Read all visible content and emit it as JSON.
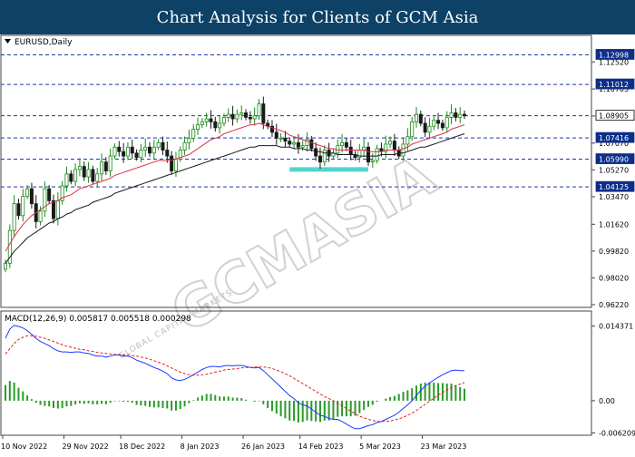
{
  "title": "Chart Analysis for Clients of GCM Asia",
  "watermark": "GCMASIA",
  "watermark_sub": "GLOBAL CAPITAL MARKETS",
  "chart_data": [
    {
      "type": "candlestick",
      "symbol_label": "EURUSD,Daily",
      "ylim": [
        0.9622,
        1.14
      ],
      "y_ticks": [
        1.1252,
        1.10705,
        1.0889,
        1.0707,
        1.0527,
        1.0347,
        1.0162,
        0.9982,
        0.9802,
        0.9622
      ],
      "levels": [
        {
          "value": 1.12998,
          "label": "1.12998"
        },
        {
          "value": 1.11012,
          "label": "1.11012"
        },
        {
          "value": 1.08905,
          "label": "1.08905",
          "highlight": true
        },
        {
          "value": 1.07416,
          "label": "1.07416"
        },
        {
          "value": 1.0599,
          "label": "1.05990"
        },
        {
          "value": 1.04125,
          "label": "1.04125"
        }
      ],
      "support_zone": {
        "value": 1.053,
        "from_date": "14 Feb 2023",
        "to_date": "5 Mar 2023"
      },
      "colors": {
        "bull": "#1a8a1a",
        "bear": "#1a1a1a",
        "ma_fast": "#d6334a",
        "ma_slow": "#1a1a1a",
        "level": "#1a3aa8",
        "zone": "#3fd0c8",
        "tag_bg": "#0d2f8a"
      },
      "x_labels": [
        "10 Nov 2022",
        "29 Nov 2022",
        "18 Dec 2022",
        "8 Jan 2023",
        "26 Jan 2023",
        "14 Feb 2023",
        "5 Mar 2023",
        "23 Mar 2023"
      ],
      "close": [
        0.99,
        1.012,
        1.03,
        1.022,
        1.035,
        1.04,
        1.03,
        1.018,
        1.025,
        1.04,
        1.032,
        1.02,
        1.032,
        1.042,
        1.05,
        1.045,
        1.053,
        1.055,
        1.048,
        1.053,
        1.045,
        1.05,
        1.058,
        1.052,
        1.062,
        1.068,
        1.065,
        1.062,
        1.068,
        1.064,
        1.061,
        1.066,
        1.068,
        1.064,
        1.068,
        1.071,
        1.066,
        1.062,
        1.052,
        1.06,
        1.066,
        1.071,
        1.074,
        1.08,
        1.083,
        1.085,
        1.087,
        1.085,
        1.081,
        1.084,
        1.088,
        1.09,
        1.087,
        1.09,
        1.091,
        1.088,
        1.087,
        1.089,
        1.097,
        1.084,
        1.082,
        1.078,
        1.074,
        1.074,
        1.072,
        1.07,
        1.071,
        1.068,
        1.069,
        1.073,
        1.067,
        1.062,
        1.058,
        1.066,
        1.062,
        1.064,
        1.069,
        1.071,
        1.068,
        1.063,
        1.061,
        1.066,
        1.068,
        1.058,
        1.059,
        1.067,
        1.065,
        1.07,
        1.072,
        1.066,
        1.062,
        1.07,
        1.075,
        1.085,
        1.09,
        1.084,
        1.078,
        1.082,
        1.086,
        1.084,
        1.081,
        1.088,
        1.091,
        1.088,
        1.09,
        1.089
      ],
      "ma_fast": [
        0.998,
        1.003,
        1.008,
        1.012,
        1.016,
        1.019,
        1.022,
        1.024,
        1.026,
        1.028,
        1.03,
        1.031,
        1.032,
        1.034,
        1.035,
        1.036,
        1.038,
        1.04,
        1.041,
        1.042,
        1.043,
        1.044,
        1.045,
        1.046,
        1.047,
        1.049,
        1.05,
        1.051,
        1.052,
        1.053,
        1.054,
        1.055,
        1.056,
        1.057,
        1.058,
        1.059,
        1.059,
        1.059,
        1.059,
        1.06,
        1.061,
        1.062,
        1.063,
        1.065,
        1.067,
        1.069,
        1.071,
        1.073,
        1.074,
        1.075,
        1.077,
        1.078,
        1.079,
        1.08,
        1.081,
        1.082,
        1.083,
        1.083,
        1.084,
        1.083,
        1.082,
        1.081,
        1.08,
        1.079,
        1.078,
        1.076,
        1.075,
        1.074,
        1.073,
        1.072,
        1.071,
        1.07,
        1.069,
        1.068,
        1.067,
        1.067,
        1.066,
        1.066,
        1.066,
        1.066,
        1.066,
        1.066,
        1.066,
        1.065,
        1.065,
        1.065,
        1.065,
        1.066,
        1.066,
        1.066,
        1.066,
        1.067,
        1.068,
        1.07,
        1.071,
        1.072,
        1.073,
        1.074,
        1.075,
        1.076,
        1.077,
        1.078,
        1.08,
        1.081,
        1.082,
        1.083
      ],
      "ma_slow": [
        0.99,
        0.994,
        0.998,
        1.001,
        1.004,
        1.007,
        1.009,
        1.011,
        1.013,
        1.015,
        1.017,
        1.018,
        1.02,
        1.021,
        1.023,
        1.024,
        1.026,
        1.027,
        1.028,
        1.029,
        1.031,
        1.032,
        1.033,
        1.034,
        1.035,
        1.037,
        1.038,
        1.039,
        1.04,
        1.041,
        1.042,
        1.043,
        1.044,
        1.045,
        1.046,
        1.047,
        1.048,
        1.049,
        1.05,
        1.051,
        1.052,
        1.053,
        1.054,
        1.055,
        1.056,
        1.057,
        1.058,
        1.059,
        1.06,
        1.061,
        1.062,
        1.063,
        1.064,
        1.065,
        1.066,
        1.067,
        1.068,
        1.068,
        1.069,
        1.069,
        1.069,
        1.069,
        1.069,
        1.068,
        1.068,
        1.068,
        1.067,
        1.067,
        1.067,
        1.066,
        1.066,
        1.065,
        1.065,
        1.064,
        1.064,
        1.064,
        1.063,
        1.063,
        1.063,
        1.063,
        1.063,
        1.062,
        1.062,
        1.062,
        1.062,
        1.062,
        1.063,
        1.063,
        1.063,
        1.063,
        1.064,
        1.064,
        1.065,
        1.066,
        1.067,
        1.068,
        1.068,
        1.069,
        1.07,
        1.071,
        1.072,
        1.073,
        1.074,
        1.075,
        1.076,
        1.077
      ]
    },
    {
      "type": "macd",
      "label": "MACD(12,26,9) 0.005817 0.005518 0.000298",
      "ylim": [
        -0.0063,
        0.015
      ],
      "y_ticks": [
        {
          "value": 0.014371,
          "label": "0.014371"
        },
        {
          "value": 0.0,
          "label": "0.00"
        },
        {
          "value": -0.006209,
          "label": "-0.006209"
        }
      ],
      "macd": [
        0.012,
        0.0138,
        0.0145,
        0.0143,
        0.014,
        0.0135,
        0.0128,
        0.012,
        0.0114,
        0.011,
        0.0106,
        0.01,
        0.0096,
        0.0094,
        0.0094,
        0.0093,
        0.0094,
        0.0094,
        0.0092,
        0.0091,
        0.0088,
        0.0086,
        0.0086,
        0.0084,
        0.0086,
        0.0088,
        0.0088,
        0.0086,
        0.0086,
        0.0083,
        0.0078,
        0.0075,
        0.0072,
        0.0068,
        0.0064,
        0.0061,
        0.0057,
        0.0052,
        0.0044,
        0.004,
        0.0039,
        0.0041,
        0.0045,
        0.005,
        0.0055,
        0.006,
        0.0064,
        0.0066,
        0.0066,
        0.0065,
        0.0067,
        0.0068,
        0.0067,
        0.0068,
        0.0068,
        0.0066,
        0.0064,
        0.0063,
        0.0064,
        0.0058,
        0.005,
        0.0042,
        0.0034,
        0.0026,
        0.0018,
        0.001,
        0.0004,
        -0.0004,
        -0.0008,
        -0.001,
        -0.0016,
        -0.0022,
        -0.0028,
        -0.003,
        -0.0034,
        -0.0036,
        -0.0036,
        -0.004,
        -0.0045,
        -0.005,
        -0.0054,
        -0.0054,
        -0.0051,
        -0.0048,
        -0.0046,
        -0.0042,
        -0.004,
        -0.0036,
        -0.0032,
        -0.0028,
        -0.0022,
        -0.0015,
        -0.0008,
        0.0,
        0.001,
        0.002,
        0.0028,
        0.0034,
        0.004,
        0.0045,
        0.005,
        0.0054,
        0.0058,
        0.0059,
        0.0058,
        0.0058
      ],
      "signal": [
        0.009,
        0.01,
        0.011,
        0.0118,
        0.0122,
        0.0125,
        0.0125,
        0.0124,
        0.0122,
        0.012,
        0.0117,
        0.0114,
        0.0111,
        0.0108,
        0.0105,
        0.0103,
        0.0101,
        0.0099,
        0.0098,
        0.0096,
        0.0095,
        0.0093,
        0.0092,
        0.0091,
        0.009,
        0.0089,
        0.0089,
        0.0088,
        0.0088,
        0.0087,
        0.0086,
        0.0084,
        0.0082,
        0.008,
        0.0077,
        0.0074,
        0.0071,
        0.0067,
        0.0063,
        0.0059,
        0.0055,
        0.0052,
        0.005,
        0.0049,
        0.0049,
        0.005,
        0.0051,
        0.0053,
        0.0055,
        0.0057,
        0.0059,
        0.006,
        0.0061,
        0.0062,
        0.0063,
        0.0064,
        0.0064,
        0.0065,
        0.0065,
        0.0065,
        0.0064,
        0.0062,
        0.0059,
        0.0056,
        0.0052,
        0.0048,
        0.0043,
        0.0038,
        0.0033,
        0.0028,
        0.0023,
        0.0018,
        0.0013,
        0.0008,
        0.0004,
        0.0,
        -0.0005,
        -0.001,
        -0.0015,
        -0.002,
        -0.0025,
        -0.003,
        -0.0033,
        -0.0036,
        -0.0038,
        -0.004,
        -0.004,
        -0.004,
        -0.0039,
        -0.0037,
        -0.0035,
        -0.0032,
        -0.0028,
        -0.0024,
        -0.0019,
        -0.0013,
        -0.0007,
        -0.0001,
        0.0005,
        0.0011,
        0.0016,
        0.0021,
        0.0025,
        0.0029,
        0.0032,
        0.0035
      ],
      "colors": {
        "macd": "#1a3aff",
        "signal": "#e02020",
        "hist": "#2a9a2a"
      }
    }
  ]
}
